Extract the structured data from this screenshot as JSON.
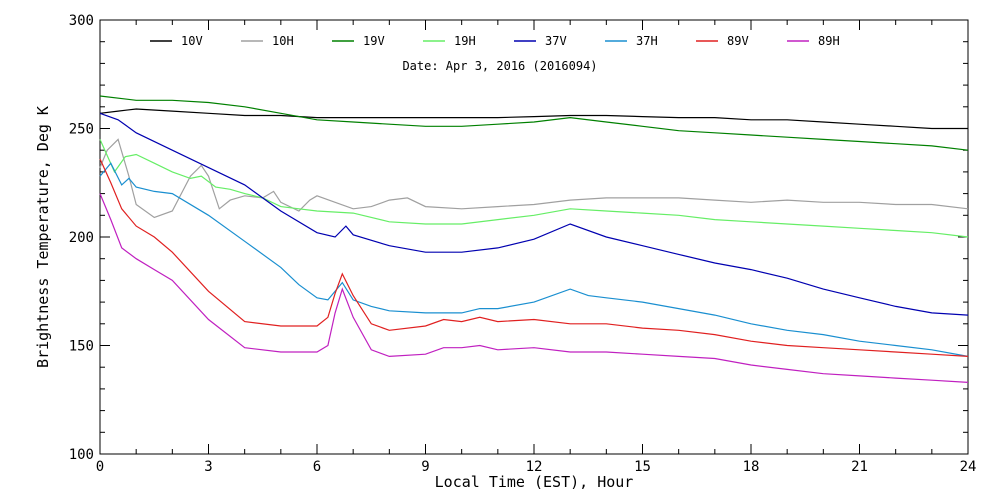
{
  "chart_data": {
    "type": "line",
    "subtitle": "Date: Apr  3, 2016 (2016094)",
    "xlabel": "Local Time (EST), Hour",
    "ylabel": "Brightness Temperature, Deg K",
    "xlim": [
      0,
      24
    ],
    "ylim": [
      100,
      300
    ],
    "xticks": [
      0,
      3,
      6,
      9,
      12,
      15,
      18,
      21,
      24
    ],
    "yticks": [
      100,
      150,
      200,
      250,
      300
    ],
    "grid": false,
    "legend_position": "top",
    "series": [
      {
        "name": "10V",
        "color": "#000000",
        "x": [
          0,
          0.5,
          1,
          2,
          3,
          4,
          5,
          6,
          7,
          8,
          9,
          10,
          11,
          12,
          13,
          14,
          15,
          16,
          17,
          18,
          19,
          20,
          21,
          22,
          23,
          24
        ],
        "y": [
          257,
          258,
          259,
          258,
          257,
          256,
          256,
          255,
          255,
          255,
          255,
          255,
          255,
          255.5,
          256,
          256,
          255.5,
          255,
          255,
          254,
          254,
          253,
          252,
          251,
          250,
          250
        ]
      },
      {
        "name": "10H",
        "color": "#a0a0a0",
        "x": [
          0,
          0.2,
          0.5,
          0.8,
          1,
          1.5,
          2,
          2.5,
          2.8,
          3,
          3.3,
          3.6,
          4,
          4.5,
          4.8,
          5,
          5.5,
          5.8,
          6,
          6.5,
          7,
          7.5,
          8,
          8.5,
          9,
          10,
          11,
          12,
          13,
          14,
          15,
          16,
          17,
          18,
          19,
          20,
          21,
          22,
          23,
          24
        ],
        "y": [
          232,
          240,
          245,
          228,
          215,
          209,
          212,
          228,
          233,
          228,
          213,
          217,
          219,
          218,
          221,
          216,
          212,
          217,
          219,
          216,
          213,
          214,
          217,
          218,
          214,
          213,
          214,
          215,
          217,
          218,
          218,
          218,
          217,
          216,
          217,
          216,
          216,
          215,
          215,
          213
        ]
      },
      {
        "name": "19V",
        "color": "#008000",
        "x": [
          0,
          1,
          2,
          3,
          4,
          5,
          6,
          7,
          8,
          9,
          10,
          11,
          12,
          13,
          14,
          15,
          16,
          17,
          18,
          19,
          20,
          21,
          22,
          23,
          24
        ],
        "y": [
          265,
          263,
          263,
          262,
          260,
          257,
          254,
          253,
          252,
          251,
          251,
          252,
          253,
          255,
          253,
          251,
          249,
          248,
          247,
          246,
          245,
          244,
          243,
          242,
          240
        ]
      },
      {
        "name": "19H",
        "color": "#66ee66",
        "x": [
          0,
          0.4,
          0.7,
          1,
          1.5,
          2,
          2.5,
          2.8,
          3.2,
          3.6,
          4,
          4.5,
          5,
          5.5,
          6,
          7,
          8,
          9,
          10,
          11,
          12,
          13,
          14,
          15,
          16,
          17,
          18,
          19,
          20,
          21,
          22,
          23,
          24
        ],
        "y": [
          245,
          230,
          237,
          238,
          234,
          230,
          227,
          228,
          223,
          222,
          220,
          218,
          214,
          213,
          212,
          211,
          207,
          206,
          206,
          208,
          210,
          213,
          212,
          211,
          210,
          208,
          207,
          206,
          205,
          204,
          203,
          202,
          200
        ]
      },
      {
        "name": "37V",
        "color": "#0000b0",
        "x": [
          0,
          0.5,
          1,
          2,
          3,
          4,
          5,
          6,
          6.5,
          6.8,
          7,
          8,
          9,
          10,
          11,
          12,
          13,
          14,
          15,
          16,
          17,
          18,
          19,
          20,
          21,
          22,
          23,
          24
        ],
        "y": [
          257,
          254,
          248,
          240,
          232,
          224,
          212,
          202,
          200,
          205,
          201,
          196,
          193,
          193,
          195,
          199,
          206,
          200,
          196,
          192,
          188,
          185,
          181,
          176,
          172,
          168,
          165,
          164
        ]
      },
      {
        "name": "37H",
        "color": "#1a8fd0",
        "x": [
          0,
          0.3,
          0.6,
          0.8,
          1,
          1.5,
          2,
          3,
          4,
          5,
          5.5,
          6,
          6.3,
          6.7,
          7,
          7.5,
          8,
          9,
          10,
          10.5,
          11,
          12,
          13,
          13.5,
          14,
          15,
          16,
          17,
          18,
          19,
          20,
          21,
          22,
          23,
          24
        ],
        "y": [
          228,
          234,
          224,
          227,
          223,
          221,
          220,
          210,
          198,
          186,
          178,
          172,
          171,
          179,
          171,
          168,
          166,
          165,
          165,
          167,
          167,
          170,
          176,
          173,
          172,
          170,
          167,
          164,
          160,
          157,
          155,
          152,
          150,
          148,
          145
        ]
      },
      {
        "name": "89V",
        "color": "#e02020",
        "x": [
          0,
          0.3,
          0.6,
          1,
          1.5,
          2,
          3,
          4,
          5,
          6,
          6.3,
          6.5,
          6.7,
          7,
          7.5,
          8,
          9,
          9.5,
          10,
          10.5,
          11,
          12,
          13,
          14,
          15,
          16,
          17,
          18,
          19,
          20,
          21,
          22,
          23,
          24
        ],
        "y": [
          236,
          225,
          213,
          205,
          200,
          193,
          175,
          161,
          159,
          159,
          163,
          174,
          183,
          173,
          160,
          157,
          159,
          162,
          161,
          163,
          161,
          162,
          160,
          160,
          158,
          157,
          155,
          152,
          150,
          149,
          148,
          147,
          146,
          145
        ]
      },
      {
        "name": "89H",
        "color": "#c020c0",
        "x": [
          0,
          0.3,
          0.6,
          1,
          1.5,
          2,
          3,
          4,
          5,
          6,
          6.3,
          6.5,
          6.7,
          7,
          7.5,
          8,
          9,
          9.5,
          10,
          10.5,
          11,
          12,
          13,
          14,
          15,
          16,
          17,
          18,
          19,
          20,
          21,
          22,
          23,
          24
        ],
        "y": [
          220,
          208,
          195,
          190,
          185,
          180,
          162,
          149,
          147,
          147,
          150,
          165,
          176,
          163,
          148,
          145,
          146,
          149,
          149,
          150,
          148,
          149,
          147,
          147,
          146,
          145,
          144,
          141,
          139,
          137,
          136,
          135,
          134,
          133
        ]
      }
    ]
  }
}
